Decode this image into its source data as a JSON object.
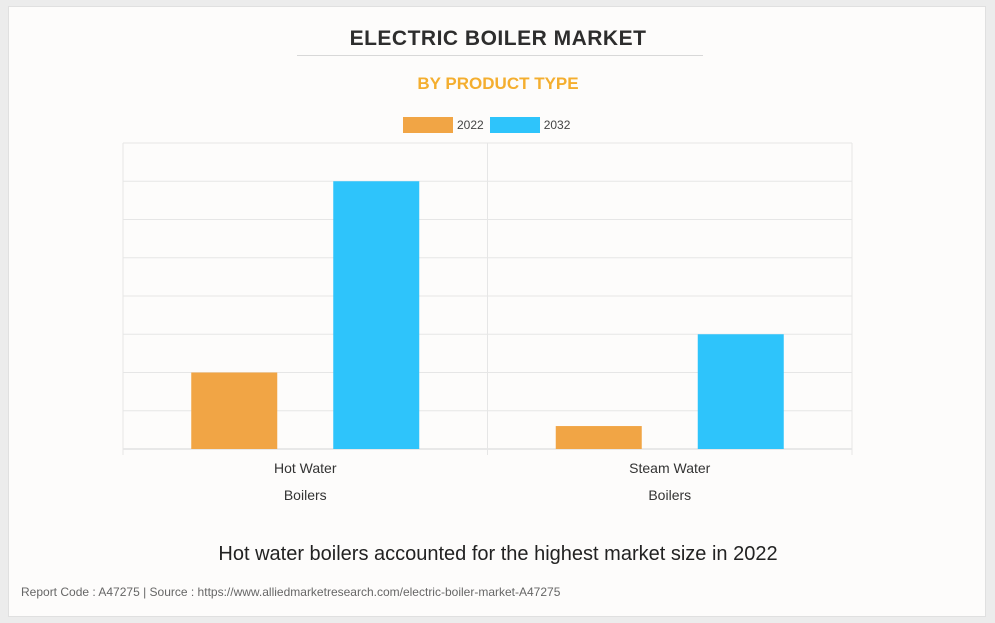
{
  "colors": {
    "series_2022": "#f1a545",
    "series_2032": "#2ec4fb",
    "grid": "#e6e6e6",
    "title": "#2d2d2d",
    "subtitle": "#f4ae2f"
  },
  "chart_data": {
    "type": "bar",
    "title": "ELECTRIC BOILER MARKET",
    "subtitle": "BY PRODUCT TYPE",
    "categories": [
      [
        "Hot Water",
        "Boilers"
      ],
      [
        "Steam Water",
        "Boilers"
      ]
    ],
    "series": [
      {
        "name": "2022",
        "values": [
          2.0,
          0.6
        ]
      },
      {
        "name": "2032",
        "values": [
          7.0,
          3.0
        ]
      }
    ],
    "ylim": [
      0,
      8
    ],
    "y_gridlines": 8,
    "xlabel": "",
    "ylabel": "",
    "legend_position": "top-center",
    "grid": true,
    "y_tick_labels_visible": false
  },
  "caption": "Hot water boilers accounted for the highest market size in 2022",
  "footer": "Report Code : A47275  |  Source : https://www.alliedmarketresearch.com/electric-boiler-market-A47275"
}
